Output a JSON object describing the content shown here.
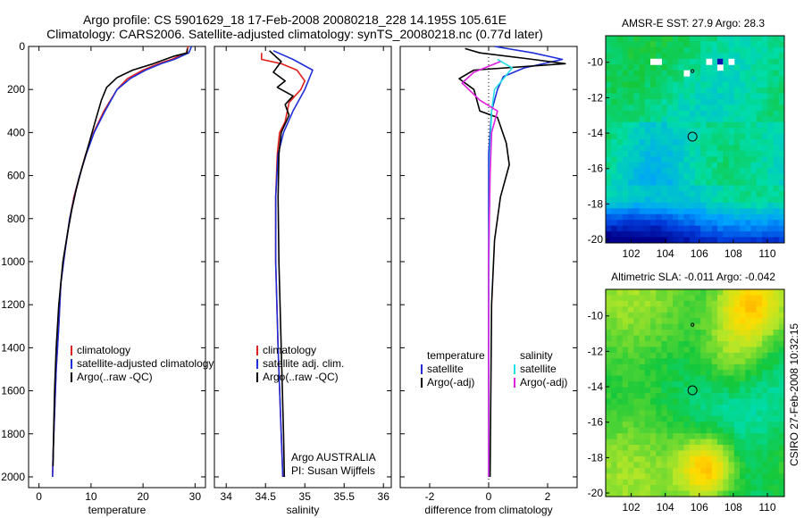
{
  "titles": {
    "line1": "Argo profile: CS 5901629_18 17-Feb-2008 20080218_228 14.195S 105.61E",
    "line2": "Climatology: CARS2006. Satellite-adjusted climatology: synTS_20080218.nc (0.77d later)"
  },
  "side_label": "CSIRO 27-Feb-2008 10:32:15",
  "colors": {
    "climatology": "#e0201b",
    "satellite": "#1f2fd8",
    "argo": "#000000",
    "satellite_cyan": "#22e0e6",
    "argo_adj_magenta": "#e020e0"
  },
  "chart_data": [
    {
      "type": "line",
      "xlabel": "temperature",
      "ylabel": "",
      "xlim": [
        -2,
        32
      ],
      "ylim": [
        2050,
        0
      ],
      "xticks": [
        "0",
        "10",
        "20",
        "30"
      ],
      "yticks": [
        "0",
        "200",
        "400",
        "600",
        "800",
        "1000",
        "1200",
        "1400",
        "1600",
        "1800",
        "2000"
      ],
      "legend": [
        "climatology",
        "satellite-adjusted climatology",
        "Argo(..raw -QC)"
      ],
      "series": [
        {
          "name": "climatology",
          "color": "red",
          "points": [
            [
              28.7,
              0
            ],
            [
              28.3,
              30
            ],
            [
              25.5,
              60
            ],
            [
              23,
              80
            ],
            [
              20,
              110
            ],
            [
              17,
              150
            ],
            [
              15,
              200
            ],
            [
              12.5,
              300
            ],
            [
              10.5,
              400
            ],
            [
              9,
              500
            ],
            [
              7.8,
              600
            ],
            [
              6.7,
              700
            ],
            [
              5.9,
              800
            ],
            [
              5,
              950
            ],
            [
              4.2,
              1100
            ],
            [
              3.8,
              1300
            ],
            [
              3.3,
              1500
            ],
            [
              3,
              1700
            ],
            [
              2.7,
              1900
            ],
            [
              2.6,
              2000
            ]
          ]
        },
        {
          "name": "satellite-adjusted climatology",
          "color": "blue",
          "points": [
            [
              29.3,
              0
            ],
            [
              28.8,
              30
            ],
            [
              26,
              60
            ],
            [
              23.5,
              80
            ],
            [
              20.5,
              110
            ],
            [
              17.5,
              150
            ],
            [
              15,
              200
            ],
            [
              12.7,
              300
            ],
            [
              10.6,
              400
            ],
            [
              9.1,
              500
            ],
            [
              7.8,
              600
            ],
            [
              6.8,
              700
            ],
            [
              5.9,
              800
            ],
            [
              5,
              950
            ],
            [
              4.2,
              1100
            ],
            [
              3.8,
              1300
            ],
            [
              3.3,
              1500
            ],
            [
              3,
              1700
            ],
            [
              2.7,
              1900
            ],
            [
              2.6,
              2000
            ]
          ]
        },
        {
          "name": "Argo(..raw -QC)",
          "color": "black",
          "points": [
            [
              28.5,
              10
            ],
            [
              28.5,
              30
            ],
            [
              26,
              45
            ],
            [
              22,
              80
            ],
            [
              18,
              110
            ],
            [
              15,
              145
            ],
            [
              13,
              190
            ],
            [
              12,
              250
            ],
            [
              10.8,
              350
            ],
            [
              9.5,
              460
            ],
            [
              8.3,
              560
            ],
            [
              7.2,
              660
            ],
            [
              6.3,
              760
            ],
            [
              5.4,
              880
            ],
            [
              4.6,
              1000
            ],
            [
              3.8,
              1200
            ],
            [
              3.3,
              1400
            ],
            [
              3,
              1600
            ],
            [
              2.8,
              1800
            ],
            [
              2.7,
              1950
            ]
          ]
        }
      ]
    },
    {
      "type": "line",
      "xlabel": "salinity",
      "ylabel": "",
      "xlim": [
        33.85,
        36.1
      ],
      "ylim": [
        2050,
        0
      ],
      "xticks": [
        "34",
        "34.5",
        "35",
        "35.5",
        "36"
      ],
      "yticks": [],
      "legend": [
        "climatology",
        "satellite adj. clim.",
        "Argo(..raw -QC)"
      ],
      "annotations": [
        "Argo AUSTRALIA",
        "PI: Susan Wijffels"
      ],
      "series": [
        {
          "name": "climatology",
          "color": "red",
          "points": [
            [
              34.45,
              30
            ],
            [
              34.45,
              60
            ],
            [
              34.7,
              80
            ],
            [
              34.9,
              110
            ],
            [
              35,
              160
            ],
            [
              34.95,
              200
            ],
            [
              34.8,
              260
            ],
            [
              34.75,
              350
            ],
            [
              34.68,
              400
            ],
            [
              34.65,
              500
            ],
            [
              34.63,
              700
            ],
            [
              34.63,
              1000
            ],
            [
              34.66,
              1400
            ],
            [
              34.7,
              1800
            ],
            [
              34.72,
              2000
            ]
          ]
        },
        {
          "name": "satellite adj. clim.",
          "color": "blue",
          "points": [
            [
              34.6,
              20
            ],
            [
              34.85,
              60
            ],
            [
              35.1,
              110
            ],
            [
              35.0,
              200
            ],
            [
              34.85,
              300
            ],
            [
              34.73,
              400
            ],
            [
              34.66,
              500
            ],
            [
              34.63,
              700
            ],
            [
              34.63,
              1000
            ],
            [
              34.66,
              1400
            ],
            [
              34.7,
              1800
            ],
            [
              34.72,
              2000
            ]
          ]
        },
        {
          "name": "Argo(..raw -QC)",
          "color": "black",
          "points": [
            [
              34.55,
              20
            ],
            [
              34.7,
              70
            ],
            [
              34.6,
              120
            ],
            [
              34.75,
              160
            ],
            [
              34.65,
              190
            ],
            [
              34.85,
              230
            ],
            [
              34.75,
              270
            ],
            [
              34.8,
              320
            ],
            [
              34.7,
              400
            ],
            [
              34.67,
              500
            ],
            [
              34.66,
              700
            ],
            [
              34.67,
              1000
            ],
            [
              34.7,
              1400
            ],
            [
              34.73,
              1800
            ],
            [
              34.74,
              2000
            ]
          ]
        }
      ]
    },
    {
      "type": "line",
      "xlabel": "difference from climatology",
      "ylabel": "",
      "xlim": [
        -3.0,
        3.0
      ],
      "ylim": [
        2050,
        0
      ],
      "xticks": [
        "-2",
        "0",
        "2"
      ],
      "yticks": [],
      "legend": [
        "temperature",
        "satellite",
        "Argo(-adj)",
        "salinity",
        "satellite",
        "Argo(-adj)"
      ],
      "series": [
        {
          "name": "satellite",
          "color": "blue",
          "points": [
            [
              0.2,
              0
            ],
            [
              1.5,
              30
            ],
            [
              2.5,
              60
            ],
            [
              1.2,
              100
            ],
            [
              0.5,
              140
            ],
            [
              0.3,
              200
            ],
            [
              0.1,
              300
            ],
            [
              0,
              500
            ],
            [
              0,
              1000
            ],
            [
              0,
              2000
            ]
          ]
        },
        {
          "name": "Argo(-adj)",
          "color": "black",
          "points": [
            [
              -0.8,
              10
            ],
            [
              -0.3,
              30
            ],
            [
              1.5,
              60
            ],
            [
              2.6,
              80
            ],
            [
              -0.5,
              110
            ],
            [
              -1.0,
              150
            ],
            [
              -0.5,
              200
            ],
            [
              -0.3,
              300
            ],
            [
              0.3,
              330
            ],
            [
              0.6,
              450
            ],
            [
              0.7,
              550
            ],
            [
              0.4,
              700
            ],
            [
              0.2,
              900
            ],
            [
              0.1,
              1200
            ],
            [
              0.05,
              2000
            ]
          ]
        },
        {
          "name": "satellite",
          "color": "cyan",
          "points": [
            [
              0.3,
              60
            ],
            [
              0.8,
              100
            ],
            [
              0.5,
              150
            ],
            [
              0.2,
              200
            ],
            [
              0.1,
              300
            ],
            [
              0.05,
              500
            ],
            [
              0.02,
              800
            ],
            [
              0,
              1200
            ],
            [
              0,
              2000
            ]
          ]
        },
        {
          "name": "Argo(-adj)",
          "color": "magenta",
          "points": [
            [
              0.4,
              70
            ],
            [
              -0.5,
              120
            ],
            [
              -0.9,
              170
            ],
            [
              -0.3,
              250
            ],
            [
              0.3,
              300
            ],
            [
              0.1,
              400
            ],
            [
              0.05,
              600
            ],
            [
              0,
              1000
            ],
            [
              0,
              2000
            ]
          ]
        }
      ]
    },
    {
      "type": "heatmap",
      "title": "AMSR-E SST: 27.9 Argo: 28.3",
      "xlim": [
        100.5,
        111
      ],
      "ylim": [
        -20.2,
        -8.5
      ],
      "xticks": [
        "102",
        "104",
        "106",
        "108",
        "110"
      ],
      "yticks": [
        "-10",
        "-12",
        "-14",
        "-16",
        "-18",
        "-20"
      ],
      "markers": [
        {
          "x": 105.6,
          "y": -14.2
        },
        {
          "x": 105.6,
          "y": -10.5
        }
      ]
    },
    {
      "type": "heatmap",
      "title": "Altimetric SLA: -0.011 Argo: -0.042",
      "xlim": [
        100.5,
        111
      ],
      "ylim": [
        -20.2,
        -8.5
      ],
      "xticks": [
        "102",
        "104",
        "106",
        "108",
        "110"
      ],
      "yticks": [
        "-10",
        "-12",
        "-14",
        "-16",
        "-18",
        "-20"
      ],
      "markers": [
        {
          "x": 105.6,
          "y": -14.2
        },
        {
          "x": 105.6,
          "y": -10.5
        }
      ]
    }
  ]
}
